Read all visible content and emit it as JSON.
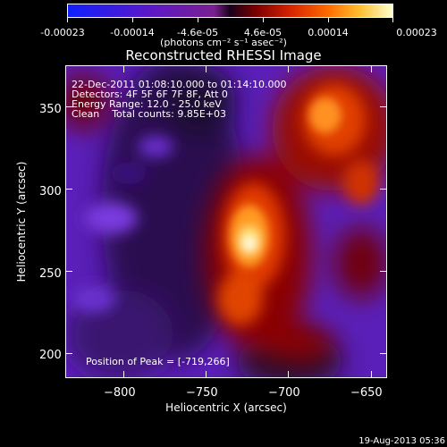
{
  "colorbar": {
    "ticks": [
      "-0.00023",
      "-0.00014",
      "-4.6e-05",
      "4.6e-05",
      "0.00014",
      "0.00023"
    ],
    "units": "(photons cm⁻² s⁻¹ asec⁻²)"
  },
  "chart_data": {
    "type": "heatmap",
    "title": "Reconstructed RHESSI Image",
    "xlabel": "Heliocentric X (arcsec)",
    "ylabel": "Heliocentric Y (arcsec)",
    "xlim": [
      -835,
      -640
    ],
    "ylim": [
      185,
      375
    ],
    "x_ticks": [
      "−800",
      "−750",
      "−700",
      "−650"
    ],
    "x_tick_values": [
      -800,
      -750,
      -700,
      -650
    ],
    "y_ticks": [
      "200",
      "250",
      "300",
      "350"
    ],
    "y_tick_values": [
      200,
      250,
      300,
      350
    ],
    "colorbar_range": [
      -0.00023,
      0.00023
    ],
    "peak": [
      -719,
      266
    ]
  },
  "annotations": {
    "line1": "22-Dec-2011 01:08:10.000 to 01:14:10.000",
    "line2": "Detectors: 4F 5F 6F 7F 8F, Att 0",
    "line3": "Energy Range: 12.0 - 25.0 keV",
    "line4": "Clean    Total counts: 9.85E+03",
    "peak_text": "Position of Peak = [-719,266]"
  },
  "footer": "19-Aug-2013 05:36"
}
